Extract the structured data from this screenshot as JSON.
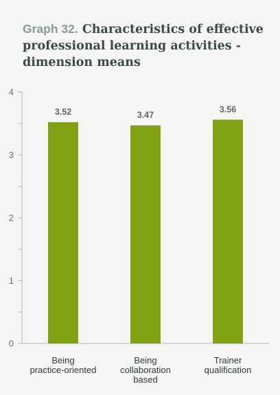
{
  "title_prefix": "Graph 32.",
  "title_text": "Characteristics of effective professional learning activities - dimension means",
  "colors": {
    "bar": "#82a014",
    "axis": "#b3b9b6",
    "background": "#f5f6f3"
  },
  "chart_data": {
    "type": "bar",
    "title": "Characteristics of effective professional learning activities - dimension means",
    "categories": [
      [
        "Being",
        "practice-oriented"
      ],
      [
        "Being",
        "collaboration",
        "based"
      ],
      [
        "Trainer",
        "qualification"
      ]
    ],
    "values": [
      3.52,
      3.47,
      3.56
    ],
    "data_labels": [
      "3.52",
      "3.47",
      "3.56"
    ],
    "yticks": [
      0,
      1,
      2,
      3,
      4
    ],
    "ylim": [
      0,
      4
    ],
    "minor_ticks": true,
    "grid": false,
    "legend": "none"
  }
}
